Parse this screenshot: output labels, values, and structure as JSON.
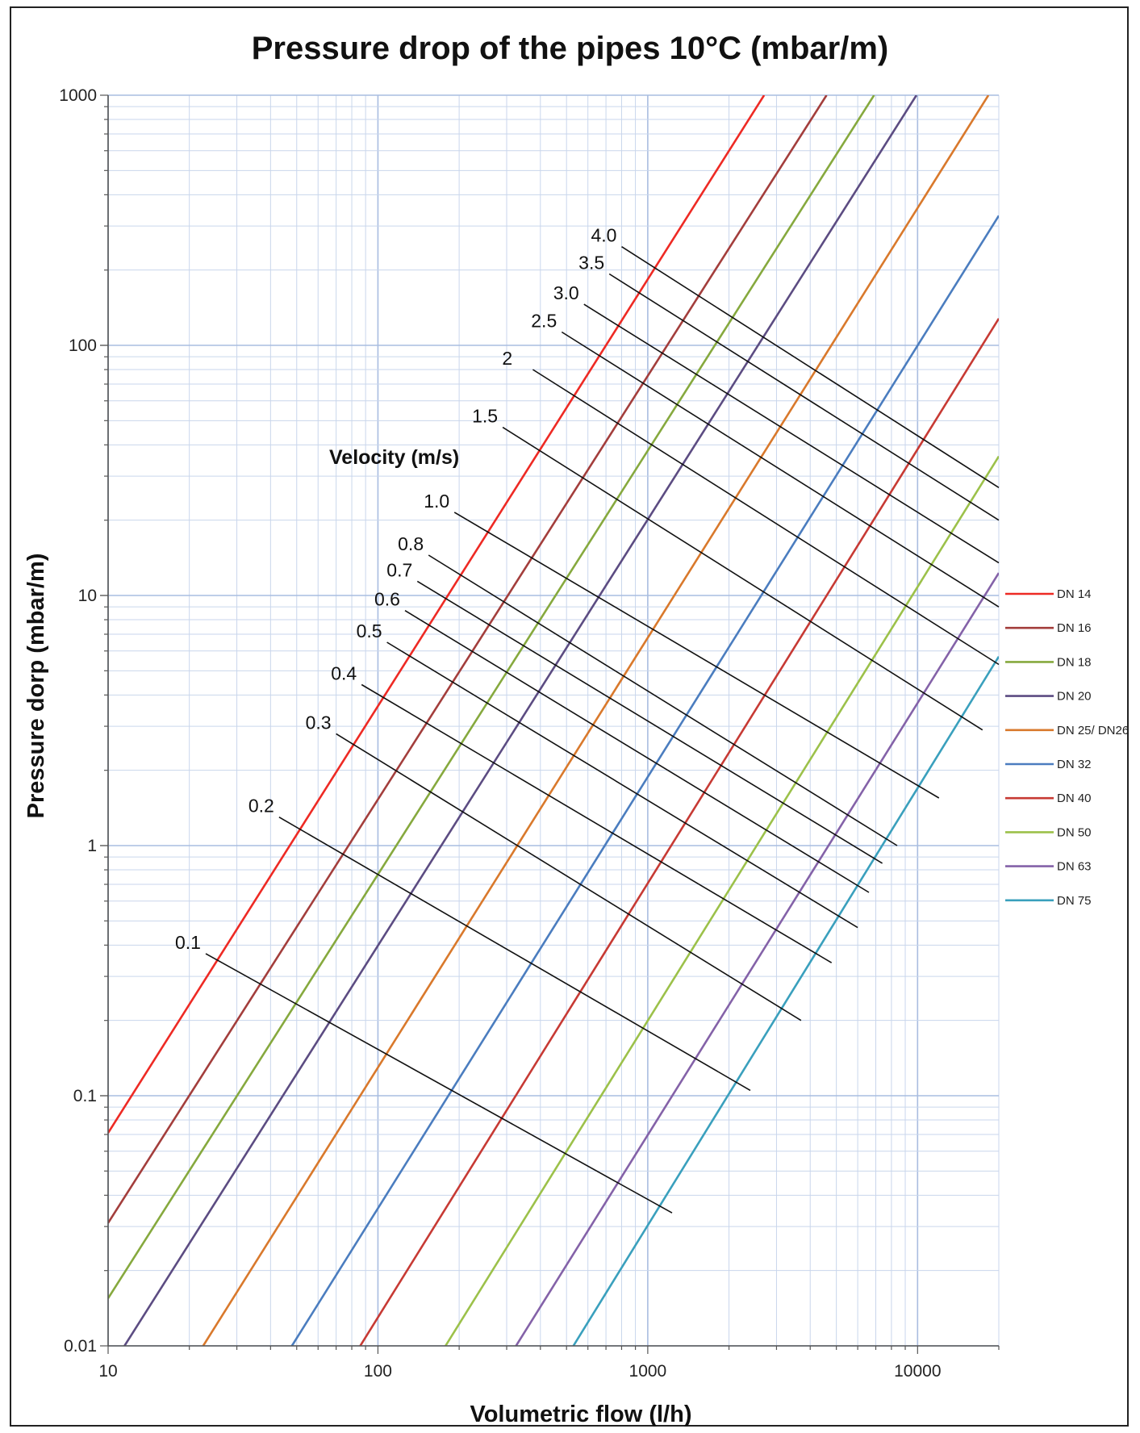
{
  "chart_data": {
    "type": "line",
    "title": "Pressure drop of the pipes 10°C (mbar/m)",
    "xlabel": "Volumetric flow (l/h)",
    "ylabel": "Pressure dorp (mbar/m)",
    "x_scale": "log",
    "y_scale": "log",
    "xlim": [
      10,
      20000
    ],
    "ylim": [
      0.01,
      1000
    ],
    "x_ticks": [
      "10",
      "100",
      "1000",
      "10000"
    ],
    "y_ticks": [
      "0.01",
      "0.1",
      "1",
      "10",
      "100",
      "1000"
    ],
    "grid": true,
    "legend_position": "right",
    "velocity_title": "Velocity (m/s)",
    "series": [
      {
        "name": "DN 14",
        "color": "#ee2a24",
        "points": [
          [
            10,
            0.071
          ],
          [
            2700,
            1000
          ]
        ]
      },
      {
        "name": "DN 16",
        "color": "#a33e3c",
        "points": [
          [
            10,
            0.031
          ],
          [
            4600,
            1000
          ]
        ]
      },
      {
        "name": "DN 18",
        "color": "#86a93e",
        "points": [
          [
            10,
            0.0155
          ],
          [
            6900,
            1000
          ]
        ]
      },
      {
        "name": "DN 20",
        "color": "#5c4c82",
        "points": [
          [
            11.5,
            0.01
          ],
          [
            9900,
            1000
          ]
        ]
      },
      {
        "name": "DN 25/ DN26",
        "color": "#d9792c",
        "points": [
          [
            22.5,
            0.01
          ],
          [
            18300,
            1000
          ]
        ]
      },
      {
        "name": "DN 32",
        "color": "#4b7dbf",
        "points": [
          [
            48,
            0.01
          ],
          [
            20000,
            330
          ]
        ]
      },
      {
        "name": "DN 40",
        "color": "#c73a34",
        "points": [
          [
            86,
            0.01
          ],
          [
            20000,
            128
          ]
        ]
      },
      {
        "name": "DN 50",
        "color": "#9cc14a",
        "points": [
          [
            178,
            0.01
          ],
          [
            20000,
            36
          ]
        ]
      },
      {
        "name": "DN 63",
        "color": "#8462a8",
        "points": [
          [
            325,
            0.01
          ],
          [
            20000,
            12.3
          ]
        ]
      },
      {
        "name": "DN 75",
        "color": "#3aa0bd",
        "points": [
          [
            530,
            0.01
          ],
          [
            20000,
            5.7
          ]
        ]
      }
    ],
    "velocity_lines": [
      {
        "label": "0.1",
        "points": [
          [
            23,
            0.37
          ],
          [
            1230,
            0.034
          ]
        ]
      },
      {
        "label": "0.2",
        "points": [
          [
            43,
            1.3
          ],
          [
            2400,
            0.105
          ]
        ]
      },
      {
        "label": "0.3",
        "points": [
          [
            70,
            2.8
          ],
          [
            3700,
            0.2
          ]
        ]
      },
      {
        "label": "0.4",
        "points": [
          [
            87,
            4.4
          ],
          [
            4800,
            0.34
          ]
        ]
      },
      {
        "label": "0.5",
        "points": [
          [
            108,
            6.5
          ],
          [
            6000,
            0.47
          ]
        ]
      },
      {
        "label": "0.6",
        "points": [
          [
            126,
            8.7
          ],
          [
            6600,
            0.65
          ]
        ]
      },
      {
        "label": "0.7",
        "points": [
          [
            140,
            11.4
          ],
          [
            7400,
            0.85
          ]
        ]
      },
      {
        "label": "0.8",
        "points": [
          [
            154,
            14.5
          ],
          [
            8400,
            1.0
          ]
        ]
      },
      {
        "label": "1.0",
        "points": [
          [
            192,
            21.5
          ],
          [
            12000,
            1.55
          ]
        ]
      },
      {
        "label": "1.5",
        "points": [
          [
            290,
            47
          ],
          [
            17400,
            2.9
          ]
        ]
      },
      {
        "label": "2",
        "points": [
          [
            375,
            80
          ],
          [
            20000,
            5.3
          ]
        ]
      },
      {
        "label": "2.5",
        "points": [
          [
            480,
            113
          ],
          [
            20000,
            9.0
          ]
        ]
      },
      {
        "label": "3.0",
        "points": [
          [
            580,
            146
          ],
          [
            20000,
            13.5
          ]
        ]
      },
      {
        "label": "3.5",
        "points": [
          [
            720,
            193
          ],
          [
            20000,
            20
          ]
        ]
      },
      {
        "label": "4.0",
        "points": [
          [
            800,
            248
          ],
          [
            20000,
            27
          ]
        ]
      }
    ]
  }
}
